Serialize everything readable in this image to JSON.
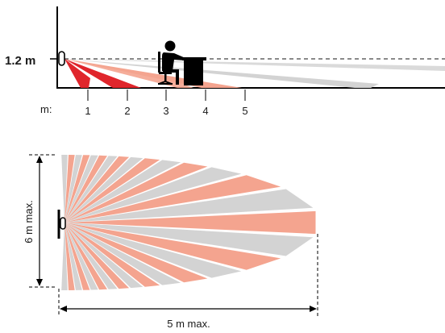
{
  "side_view": {
    "height_label": "1.2 m",
    "axis_unit": "m:",
    "distance_ticks": [
      "1",
      "2",
      "3",
      "4",
      "5"
    ],
    "colors": {
      "near_beam": "#e0262c",
      "salmon": "#f4a48f",
      "gray": "#cfcfcf"
    },
    "figure_icon": "person-at-desk-icon"
  },
  "top_view": {
    "height_label": "6 m max.",
    "width_label": "5 m max.",
    "colors": {
      "salmon": "#f4a48f",
      "gray": "#d3d3d3"
    }
  }
}
